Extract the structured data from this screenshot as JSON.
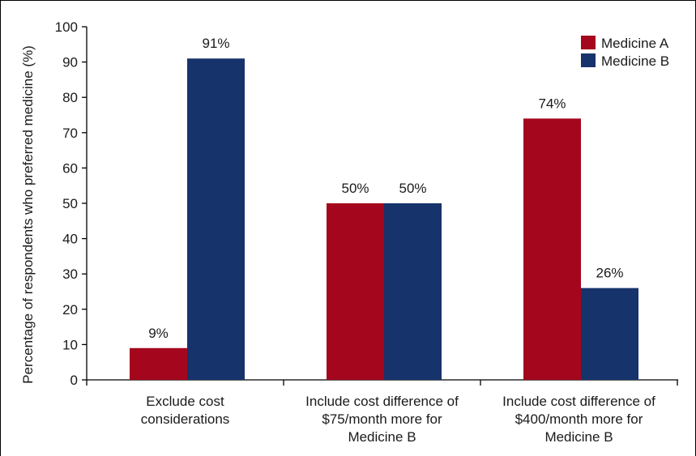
{
  "chart_data": {
    "type": "bar",
    "title": "",
    "xlabel": "",
    "ylabel": "Percentage of respondents who preferred medicine (%)",
    "ylim": [
      0,
      100
    ],
    "yticks": [
      0,
      10,
      20,
      30,
      40,
      50,
      60,
      70,
      80,
      90,
      100
    ],
    "grid": false,
    "legend_position": "top-right",
    "categories": [
      [
        "Exclude cost",
        "considerations"
      ],
      [
        "Include cost difference of",
        "$75/month more for",
        "Medicine B"
      ],
      [
        "Include cost difference of",
        "$400/month more for",
        "Medicine B"
      ]
    ],
    "series": [
      {
        "name": "Medicine A",
        "color": "#a4061d",
        "values": [
          9,
          50,
          74
        ],
        "labels": [
          "9%",
          "50%",
          "74%"
        ]
      },
      {
        "name": "Medicine B",
        "color": "#17336b",
        "values": [
          91,
          50,
          26
        ],
        "labels": [
          "91%",
          "50%",
          "26%"
        ]
      }
    ]
  }
}
